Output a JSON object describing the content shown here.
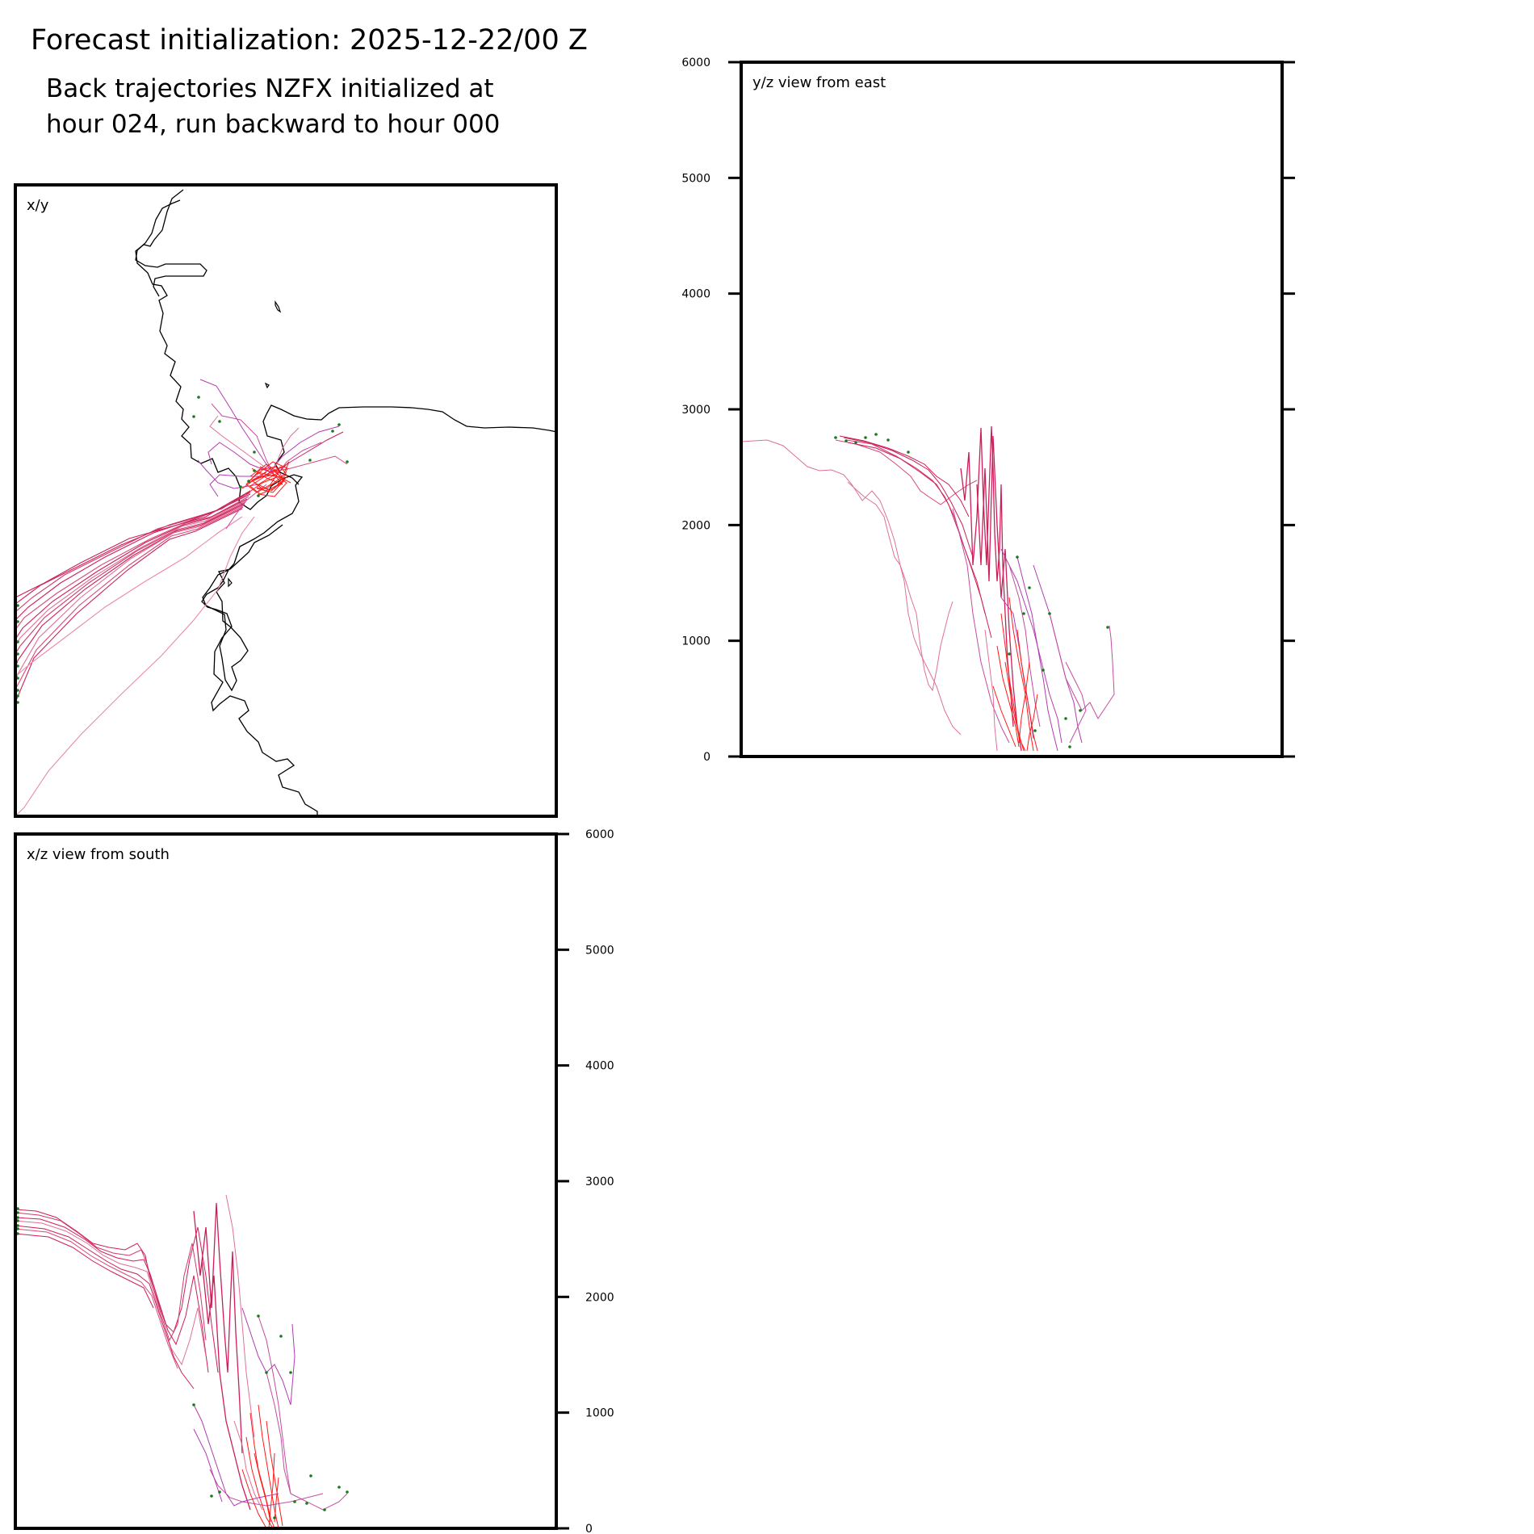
{
  "header": {
    "title": "Forecast initialization: 2025-12-22/00 Z",
    "subtitle_line1": "Back trajectories NZFX initialized at",
    "subtitle_line2": "hour 024, run backward to hour 000"
  },
  "chart_data": [
    {
      "panel": "xy",
      "type": "line",
      "label": "x/y",
      "description": "plan view map with coastline and trajectory paths converging on release area",
      "colors": {
        "trajectory": "#cc1f5a",
        "trajectory_alt": "#b23cb0",
        "near_source": "#ff1a1a",
        "coast": "#000000",
        "start_marker": "#1a7a1a"
      }
    },
    {
      "panel": "yz",
      "type": "line",
      "label": "y/z view from east",
      "ylim": [
        0,
        6000
      ],
      "yticks": [
        "0",
        "1000",
        "2000",
        "3000",
        "4000",
        "5000",
        "6000"
      ],
      "ticks_side": "left",
      "release_height_band": [
        0,
        200
      ],
      "max_height": 2850
    },
    {
      "panel": "xz",
      "type": "line",
      "label": "x/z view from south",
      "ylim": [
        0,
        6000
      ],
      "yticks": [
        "0",
        "1000",
        "2000",
        "3000",
        "4000",
        "5000",
        "6000"
      ],
      "ticks_side": "right",
      "release_height_band": [
        0,
        200
      ],
      "max_height": 2850
    }
  ]
}
